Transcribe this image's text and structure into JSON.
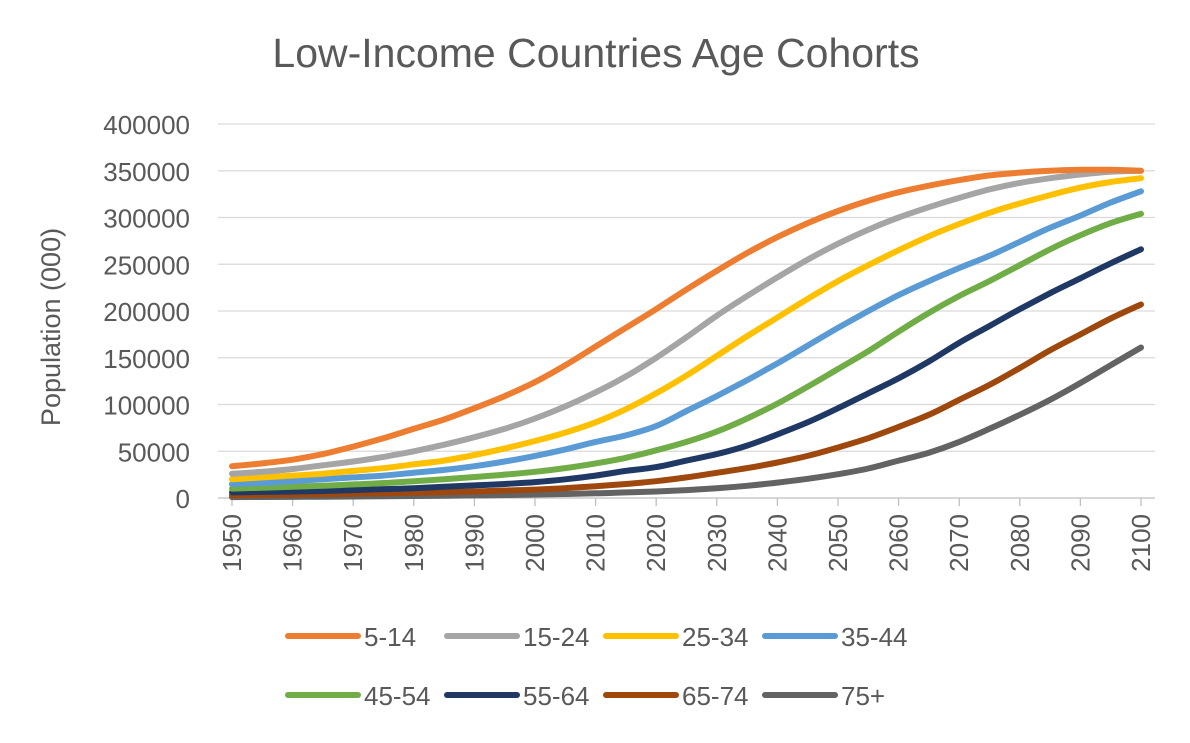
{
  "chart_data": {
    "type": "line",
    "title": "Low-Income Countries Age Cohorts",
    "xlabel": "",
    "ylabel": "Population (000)",
    "ylim": [
      0,
      400000
    ],
    "yticks": [
      "0",
      "50000",
      "100000",
      "150000",
      "200000",
      "250000",
      "300000",
      "350000",
      "400000"
    ],
    "xticks": [
      "1950",
      "1960",
      "1970",
      "1980",
      "1990",
      "2000",
      "2010",
      "2020",
      "2030",
      "2040",
      "2050",
      "2060",
      "2070",
      "2080",
      "2090",
      "2100"
    ],
    "grid": true,
    "legend_position": "bottom",
    "x": [
      1950,
      1955,
      1960,
      1965,
      1970,
      1975,
      1980,
      1985,
      1990,
      1995,
      2000,
      2005,
      2010,
      2015,
      2020,
      2025,
      2030,
      2035,
      2040,
      2045,
      2050,
      2055,
      2060,
      2065,
      2070,
      2075,
      2080,
      2085,
      2090,
      2095,
      2100
    ],
    "series": [
      {
        "name": "5-14",
        "color": "#ED7D31",
        "values": [
          34000,
          37000,
          41000,
          47000,
          55000,
          64000,
          74000,
          84000,
          96000,
          109000,
          124000,
          142000,
          162000,
          182000,
          202000,
          223000,
          243000,
          262000,
          279000,
          294000,
          307000,
          318000,
          327000,
          334000,
          340000,
          345000,
          348000,
          350000,
          351000,
          351000,
          350000
        ]
      },
      {
        "name": "15-24",
        "color": "#A5A5A5",
        "values": [
          26000,
          28000,
          31000,
          35000,
          39000,
          44000,
          50000,
          57000,
          65000,
          74000,
          85000,
          98000,
          113000,
          130000,
          150000,
          172000,
          195000,
          216000,
          236000,
          255000,
          272000,
          287000,
          300000,
          311000,
          321000,
          330000,
          337000,
          342000,
          346000,
          349000,
          350000
        ]
      },
      {
        "name": "25-34",
        "color": "#FFC000",
        "values": [
          20000,
          22000,
          24000,
          26000,
          29000,
          32000,
          36000,
          40000,
          46000,
          53000,
          61000,
          70000,
          81000,
          95000,
          112000,
          131000,
          152000,
          173000,
          193000,
          213000,
          232000,
          249000,
          265000,
          280000,
          293000,
          305000,
          315000,
          324000,
          332000,
          338000,
          342000
        ]
      },
      {
        "name": "35-44",
        "color": "#5B9BD5",
        "values": [
          15000,
          16000,
          18000,
          20000,
          22000,
          24000,
          27000,
          30000,
          34000,
          39000,
          45000,
          52000,
          60000,
          67000,
          77000,
          93000,
          109000,
          126000,
          144000,
          163000,
          182000,
          200000,
          217000,
          232000,
          246000,
          259000,
          274000,
          289000,
          302000,
          316000,
          328000
        ]
      },
      {
        "name": "45-54",
        "color": "#70AD47",
        "values": [
          10000,
          11000,
          12000,
          13000,
          14500,
          16000,
          18000,
          20000,
          22500,
          25000,
          28000,
          32000,
          37000,
          43000,
          51000,
          60000,
          71000,
          85000,
          101000,
          119000,
          138000,
          157000,
          178000,
          198000,
          216000,
          232000,
          249000,
          266000,
          281000,
          294000,
          304000
        ]
      },
      {
        "name": "55-64",
        "color": "#203864",
        "values": [
          6000,
          6500,
          7000,
          7500,
          8500,
          9500,
          10500,
          12000,
          13500,
          15000,
          17000,
          20000,
          24000,
          29000,
          33000,
          40000,
          47000,
          56000,
          68000,
          81000,
          96000,
          112000,
          128000,
          146000,
          166000,
          184000,
          202000,
          219000,
          235000,
          251000,
          266000
        ]
      },
      {
        "name": "65-74",
        "color": "#9E480E",
        "values": [
          3000,
          3300,
          3600,
          4000,
          4500,
          5000,
          5600,
          6300,
          7000,
          8000,
          9000,
          10500,
          12500,
          15000,
          18000,
          22000,
          27000,
          32000,
          38000,
          45000,
          54000,
          64000,
          76000,
          89000,
          105000,
          121000,
          139000,
          158000,
          175000,
          192000,
          207000
        ]
      },
      {
        "name": "75+",
        "color": "#636363",
        "values": [
          1000,
          1100,
          1200,
          1400,
          1600,
          1800,
          2100,
          2400,
          2800,
          3200,
          3700,
          4300,
          5000,
          6000,
          7000,
          8500,
          10500,
          13000,
          16500,
          20500,
          25500,
          31500,
          40000,
          48500,
          60000,
          74000,
          89000,
          105000,
          123000,
          142000,
          161000
        ]
      }
    ]
  }
}
